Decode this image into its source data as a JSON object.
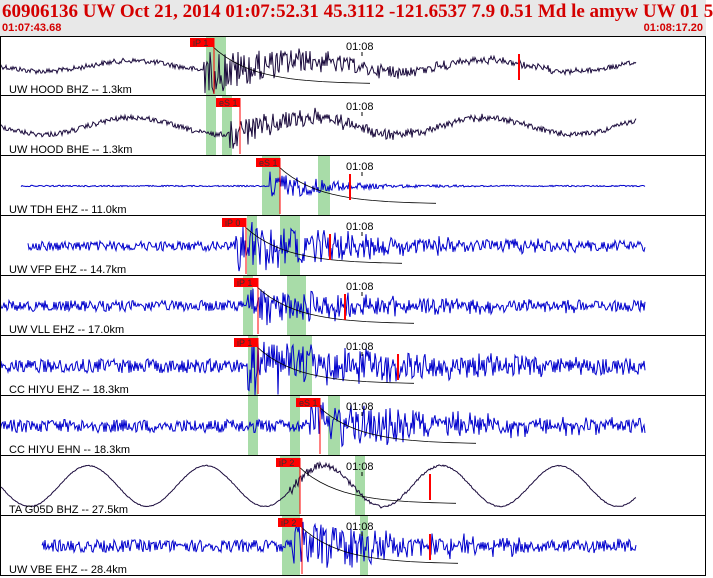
{
  "header": {
    "title": "60906136 UW Oct 21, 2014 01:07:52.31   45.3112 -121.6537  7.9 0.51 Md le amyw UW 01   5",
    "start_time": "01:07:43.68",
    "end_time": "01:08:17.20"
  },
  "time_tick_label": "01:08",
  "colors": {
    "header_text": "#d40000",
    "header_bg": "#e8e8e8",
    "trace_dark": "#1a0a3c",
    "trace_blue": "#0000cc",
    "pick_box": "#ff0000",
    "window_band": "#a8dca8",
    "theoretical_curve": "#000000",
    "panel_border": "#000000"
  },
  "panels": [
    {
      "label": "UW HOOD BHZ -- 1.3km",
      "color": "dark",
      "pick": "P 1",
      "pick_type": "P",
      "start": 0.0,
      "end": 1.0,
      "noise": 0.12,
      "onset": 0.34,
      "peak": 0.85,
      "decay": 0.18,
      "wave": 0.22
    },
    {
      "label": "UW HOOD BHE -- 1.3km",
      "color": "dark",
      "pick": "S 1",
      "pick_type": "S",
      "start": 0.0,
      "end": 1.0,
      "noise": 0.12,
      "onset": 0.36,
      "peak": 0.6,
      "decay": 0.15,
      "wave": 0.35
    },
    {
      "label": "UW TDH EHZ -- 11.0km",
      "color": "blue",
      "pick": "S 1",
      "pick_type": "S",
      "start": 0.03,
      "end": 0.97,
      "noise": 0.03,
      "onset": 0.4,
      "peak": 0.6,
      "decay": 0.08,
      "wave": 0.0
    },
    {
      "label": "UW VFP EHZ -- 14.7km",
      "color": "blue",
      "pick": "P 0",
      "pick_type": "P",
      "start": 0.04,
      "end": 0.97,
      "noise": 0.22,
      "onset": 0.36,
      "peak": 0.95,
      "decay": 0.2,
      "wave": 0.0
    },
    {
      "label": "UW VLL EHZ -- 17.0km",
      "color": "blue",
      "pick": "P 1",
      "pick_type": "P",
      "start": 0.0,
      "end": 0.97,
      "noise": 0.25,
      "onset": 0.37,
      "peak": 0.75,
      "decay": 0.2,
      "wave": 0.0
    },
    {
      "label": "CC HIYU EHZ -- 18.3km",
      "color": "blue",
      "pick": "P 1",
      "pick_type": "P",
      "start": 0.0,
      "end": 0.97,
      "noise": 0.32,
      "onset": 0.37,
      "peak": 0.95,
      "decay": 0.25,
      "wave": 0.0
    },
    {
      "label": "CC HIYU EHN -- 18.3km",
      "color": "blue",
      "pick": "S 1",
      "pick_type": "S",
      "start": 0.0,
      "end": 0.97,
      "noise": 0.3,
      "onset": 0.45,
      "peak": 0.9,
      "decay": 0.2,
      "wave": 0.0
    },
    {
      "label": "TA G05D BHZ -- 27.5km",
      "color": "dark",
      "pick": "P 2",
      "pick_type": "P",
      "start": 0.0,
      "end": 1.0,
      "noise": 0.02,
      "onset": 0.5,
      "peak": 0.2,
      "decay": 0.1,
      "wave": 0.85
    },
    {
      "label": "UW VBE EHZ -- 28.4km",
      "color": "blue",
      "pick": "P 2",
      "pick_type": "P",
      "start": 0.06,
      "end": 1.0,
      "noise": 0.28,
      "onset": 0.5,
      "peak": 0.95,
      "decay": 0.2,
      "wave": 0.0
    }
  ]
}
